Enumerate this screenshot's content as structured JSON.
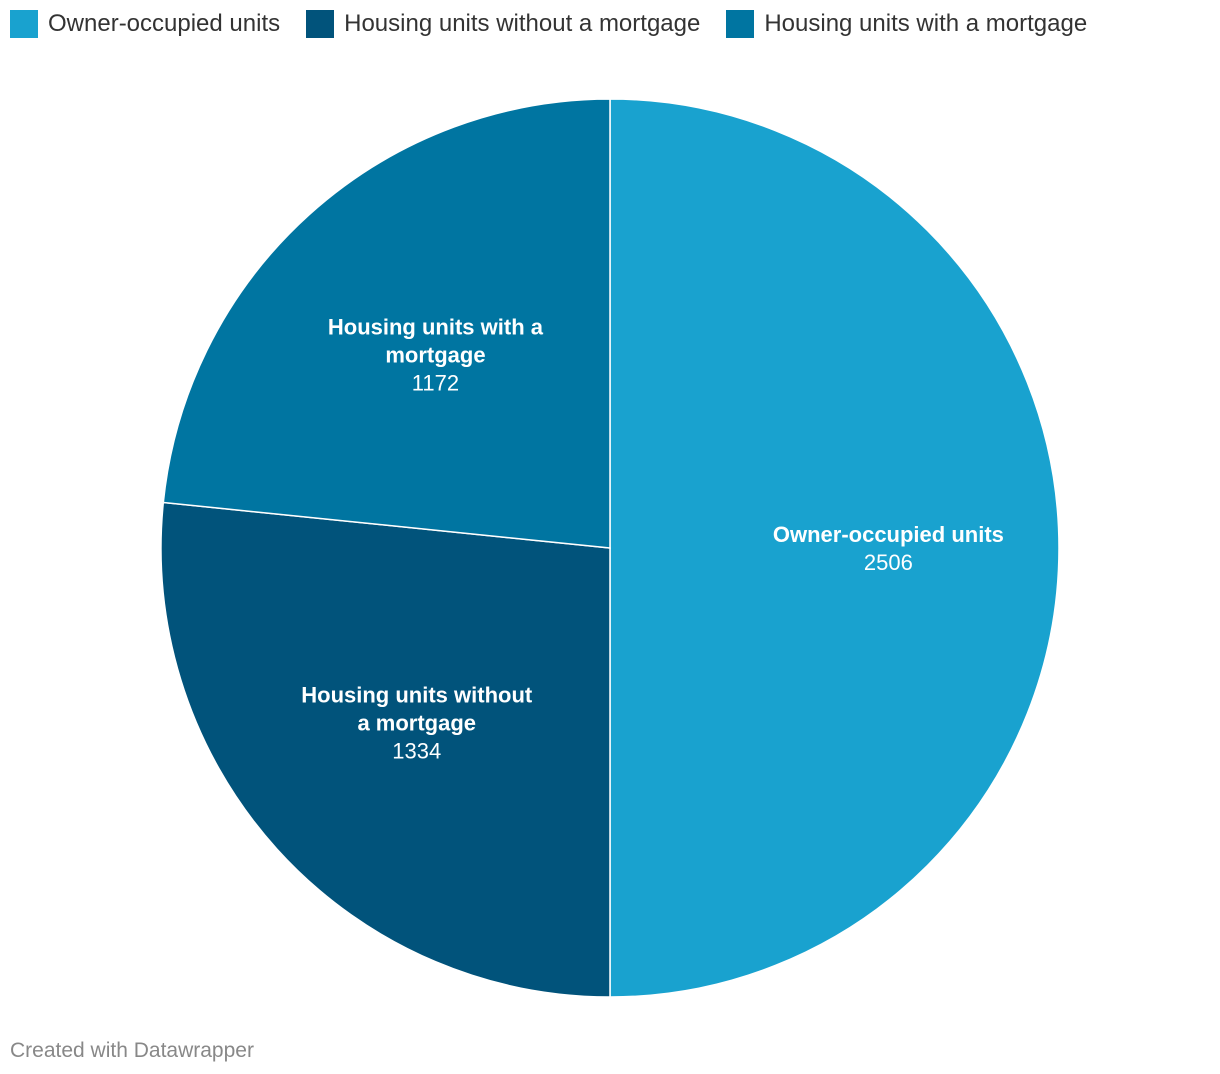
{
  "chart_data": {
    "type": "pie",
    "categories": [
      "Owner-occupied units",
      "Housing units without a mortgage",
      "Housing units with a mortgage"
    ],
    "values": [
      2506,
      1334,
      1172
    ],
    "colors": [
      "#19a2cf",
      "#01537b",
      "#0075a1"
    ],
    "title": "",
    "legend_position": "top-left",
    "start_angle_deg": 0,
    "direction": "clockwise"
  },
  "legend": {
    "items": [
      {
        "label": "Owner-occupied units",
        "color": "#19a2cf"
      },
      {
        "label": "Housing units without a mortgage",
        "color": "#01537b"
      },
      {
        "label": "Housing units with a mortgage",
        "color": "#0075a1"
      }
    ]
  },
  "slice_labels": [
    {
      "lines": [
        "Owner-occupied units"
      ],
      "value": "2506"
    },
    {
      "lines": [
        "Housing units without",
        "a mortgage"
      ],
      "value": "1334"
    },
    {
      "lines": [
        "Housing units with a",
        "mortgage"
      ],
      "value": "1172"
    }
  ],
  "footer": {
    "credit": "Created with Datawrapper"
  }
}
